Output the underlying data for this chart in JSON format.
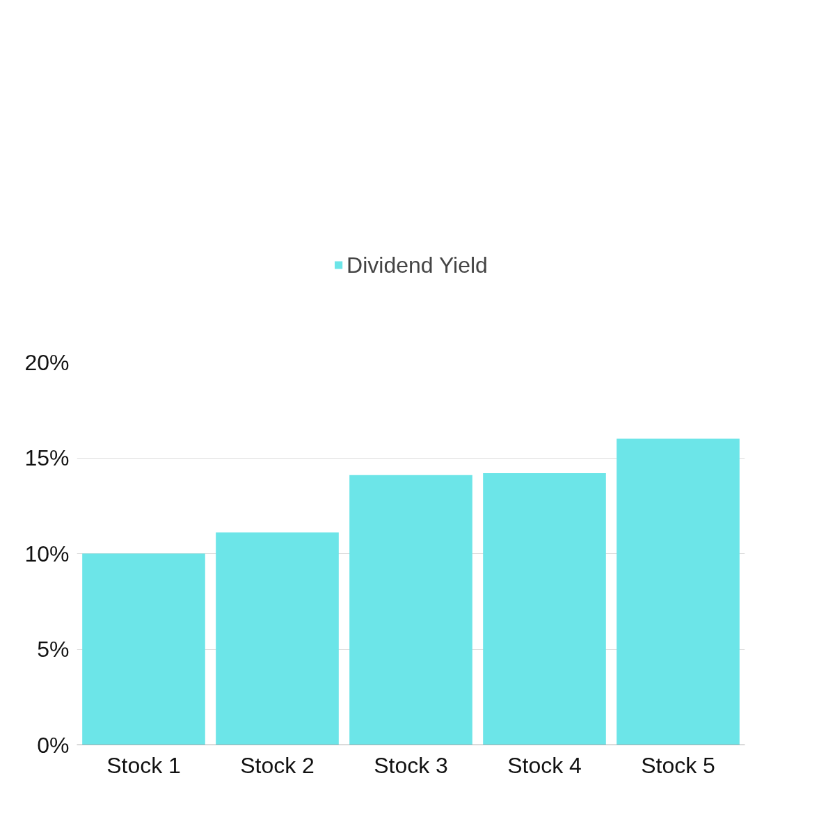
{
  "chart_data": {
    "type": "bar",
    "categories": [
      "Stock 1",
      "Stock 2",
      "Stock 3",
      "Stock 4",
      "Stock 5"
    ],
    "series": [
      {
        "name": "Dividend Yield",
        "color": "#6ce5e8",
        "values": [
          10,
          11.1,
          14.1,
          14.2,
          16
        ]
      }
    ],
    "ylim": [
      0,
      20
    ],
    "yticks": [
      {
        "value": 0,
        "label": "0%"
      },
      {
        "value": 5,
        "label": "5%"
      },
      {
        "value": 10,
        "label": "10%"
      },
      {
        "value": 15,
        "label": "15%"
      },
      {
        "value": 20,
        "label": "20%"
      }
    ],
    "grid": "y",
    "legend": "top"
  }
}
